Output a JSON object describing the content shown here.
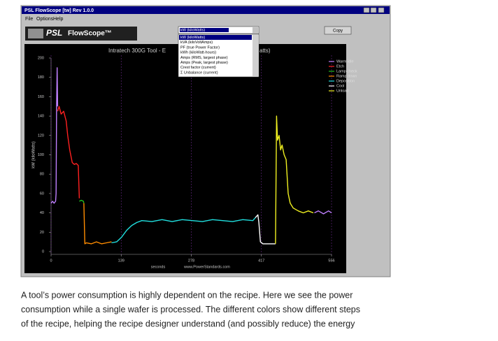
{
  "window": {
    "title": "PSL FlowScope [tw] Rev 1.0.0",
    "menu": [
      "File",
      "Options",
      "Help"
    ]
  },
  "toolbar": {
    "logo": "PSL",
    "product": "FlowScope™",
    "button": "Copy",
    "dropdown": {
      "selected": "kW (kiloWatts)",
      "items": [
        "kW (kiloWatts)",
        "kVA (kiloVoltAmps)",
        "PF (true Power Factor)",
        "kWh (kiloWatt-hours)",
        "Amps (RMS, largest phase)",
        "Amps (Peak, largest phase)",
        "Crest factor (current)",
        "Σ Unbalance (current)"
      ]
    }
  },
  "chart_data": {
    "type": "line",
    "title": "Intratech 300G Tool - E",
    "title_end": "atts)",
    "ylabel": "kW (kiloWatts)",
    "xlabel": "seconds",
    "credit": "www.PowerStandards.com",
    "xlim": [
      0,
      556
    ],
    "xticks": [
      0,
      139,
      278,
      417,
      556
    ],
    "ylim": [
      0,
      200
    ],
    "yticks": [
      0,
      20,
      40,
      60,
      80,
      100,
      120,
      140,
      160,
      180,
      200
    ],
    "xgrid": true,
    "legend": "top-right",
    "series": [
      {
        "name": "Warm idle",
        "color": "#c080ff",
        "x": [
          0,
          3,
          6,
          9,
          10,
          11,
          12,
          13,
          null,
          522,
          530,
          540,
          550,
          556
        ],
        "values": [
          50,
          52,
          50,
          52,
          60,
          150,
          190,
          150,
          null,
          40,
          42,
          39,
          42,
          40
        ]
      },
      {
        "name": "Etch",
        "color": "#ff2020",
        "x": [
          13,
          16,
          20,
          25,
          30,
          33,
          37,
          42,
          46,
          50,
          54,
          56
        ],
        "values": [
          145,
          150,
          142,
          145,
          135,
          120,
          105,
          92,
          90,
          91,
          89,
          55
        ]
      },
      {
        "name": "Lamp check",
        "color": "#20c020",
        "x": [
          56,
          60,
          64,
          65
        ],
        "values": [
          52,
          53,
          52,
          50
        ]
      },
      {
        "name": "Ramp down",
        "color": "#ff8c00",
        "x": [
          65,
          67,
          70,
          80,
          90,
          100,
          110,
          120
        ],
        "values": [
          50,
          8,
          9,
          8,
          10,
          8,
          9,
          10
        ]
      },
      {
        "name": "Deposition",
        "color": "#20e0e0",
        "x": [
          120,
          130,
          140,
          150,
          160,
          170,
          180,
          200,
          220,
          240,
          260,
          280,
          300,
          320,
          340,
          360,
          380,
          400,
          405
        ],
        "values": [
          9,
          10,
          15,
          22,
          27,
          30,
          32,
          31,
          33,
          31,
          33,
          32,
          31,
          33,
          32,
          31,
          33,
          32,
          35
        ]
      },
      {
        "name": "Cool",
        "color": "#ffffff",
        "x": [
          405,
          410,
          412,
          415,
          420,
          430,
          440,
          445
        ],
        "values": [
          35,
          38,
          30,
          10,
          8,
          8,
          8,
          8
        ]
      },
      {
        "name": "Unload",
        "color": "#f0f020",
        "x": [
          445,
          447,
          449,
          452,
          455,
          458,
          462,
          466,
          470,
          474,
          480,
          490,
          500,
          510,
          520
        ],
        "values": [
          8,
          140,
          115,
          120,
          105,
          110,
          100,
          95,
          60,
          50,
          45,
          42,
          40,
          42,
          40
        ]
      }
    ]
  },
  "caption": [
    "A tool’s power consumption is highly dependent on the recipe. Here we see the power",
    "consumption while a single wafer is processed. The different colors show different steps",
    "of the recipe, helping the recipe designer understand (and possibly reduce) the energy"
  ]
}
